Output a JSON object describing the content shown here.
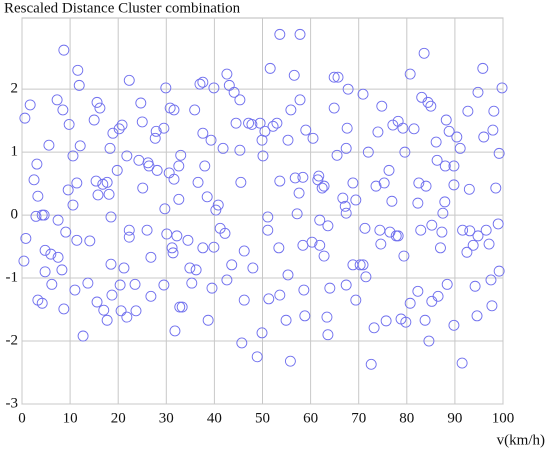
{
  "chart_data": {
    "type": "scatter",
    "title": "Rescaled Distance Cluster combination",
    "x_label": "v(km/h)",
    "color": "#7070ee",
    "grid": true,
    "xlim": [
      0,
      100
    ],
    "xticks": [
      0,
      10,
      20,
      30,
      40,
      50,
      60,
      70,
      80,
      90,
      100
    ],
    "ylim": [
      -3,
      3.13
    ],
    "yticks": [
      -3,
      -2,
      -1,
      0,
      1,
      2
    ],
    "x": [
      0.6,
      1.7,
      3.1,
      2.5,
      0.8,
      0.4,
      3.3,
      4.2,
      4.6,
      2.9,
      5.6,
      4.8,
      6.0,
      4.8,
      6.2,
      3.3,
      4.2,
      7.5,
      8.3,
      8.5,
      7.3,
      9.8,
      8.7,
      7.5,
      9.6,
      8.7,
      9.1,
      11.6,
      11.9,
      10.6,
      12.1,
      11.4,
      10.6,
      11.4,
      11,
      13.7,
      12.7,
      14.1,
      15,
      15.4,
      15.6,
      15.8,
      16.8,
      16.2,
      15.6,
      17,
      17.7,
      17.7,
      18.1,
      18.3,
      18.5,
      18.7,
      18.9,
      18.5,
      20.2,
      20.8,
      19.8,
      20.4,
      21.2,
      20.6,
      21.8,
      21.8,
      22.3,
      22.3,
      22.3,
      23.5,
      23.7,
      24.3,
      24.7,
      25,
      25.1,
      26.2,
      26.4,
      26.8,
      26,
      26.8,
      27.7,
      27.9,
      28.1,
      29.5,
      29.7,
      30.1,
      29.5,
      29.9,
      30.8,
      31.6,
      30.6,
      31.6,
      32.6,
      33,
      32.6,
      31.2,
      31.4,
      32.2,
      31.8,
      32.8,
      33.3,
      34.5,
      34.9,
      36.2,
      35.3,
      35.9,
      36.6,
      37,
      37.6,
      37.6,
      37.6,
      38,
      38.5,
      38.7,
      39.5,
      39.3,
      39.9,
      39.9,
      40.3,
      40.8,
      41.2,
      41.8,
      42.2,
      42.6,
      42.6,
      43.1,
      43.6,
      44.1,
      44.5,
      45.3,
      45.3,
      45.5,
      45.7,
      46.2,
      46.2,
      47.1,
      47.8,
      48,
      48.9,
      49.5,
      49.9,
      50.1,
      49.9,
      50.5,
      51.1,
      51.1,
      51.3,
      51.6,
      52.2,
      53,
      53.4,
      53.6,
      53.6,
      53.6,
      54.9,
      55.3,
      55.3,
      55.9,
      55.8,
      56.6,
      56.8,
      57.2,
      57.6,
      57.8,
      57.8,
      58.4,
      58.4,
      58.6,
      58.8,
      59,
      60.5,
      60.3,
      61.5,
      61.7,
      62.4,
      61.9,
      61.9,
      62.8,
      62.8,
      63.4,
      63.6,
      64,
      63.6,
      64.9,
      65.7,
      64.9,
      65.5,
      66.7,
      67.2,
      67.4,
      67.6,
      67.8,
      67.4,
      67.4,
      68.8,
      68.8,
      69.4,
      69.4,
      70.3,
      70.9,
      70.9,
      71.3,
      71.5,
      72,
      72.6,
      73.2,
      73.6,
      74,
      74.4,
      74.6,
      74.8,
      75.3,
      75.7,
      76.3,
      76.5,
      76.9,
      77.1,
      77.8,
      78.2,
      78.2,
      78.8,
      79.2,
      79.4,
      79.6,
      79.8,
      80.7,
      81.5,
      80.7,
      82.3,
      82.3,
      82.5,
      82.9,
      83.1,
      83.6,
      84,
      83.8,
      84.4,
      84.6,
      85,
      85.2,
      85.2,
      86.1,
      86.3,
      86.5,
      87,
      87.3,
      87.5,
      87.9,
      88.2,
      88,
      88.4,
      88.8,
      89.8,
      89.8,
      89.8,
      90.4,
      91.1,
      91.6,
      91.5,
      92.5,
      93,
      92.7,
      93.1,
      93.8,
      94.2,
      94.6,
      94.8,
      94.8,
      95.8,
      96,
      96.5,
      97.1,
      97.5,
      97.7,
      97.9,
      98.1,
      98.5,
      99.2,
      99.8,
      99,
      99.2
    ],
    "values": [
      1.54,
      1.75,
      0.81,
      0.56,
      -0.37,
      -0.73,
      0.3,
      0,
      0,
      -0.02,
      1.11,
      -0.56,
      -0.62,
      -0.9,
      -1.1,
      -1.35,
      -1.4,
      -0.67,
      -0.87,
      1.67,
      1.83,
      1.44,
      2.62,
      -0.08,
      0.4,
      -1.49,
      -0.27,
      2.3,
      2.06,
      0.94,
      1.1,
      0.51,
      0.16,
      -0.4,
      -1.19,
      -1.08,
      -1.92,
      -0.41,
      1.51,
      0.54,
      1.79,
      0.32,
      0.49,
      1.7,
      -1.38,
      -1.51,
      -1.67,
      0.52,
      0.33,
      1.06,
      -0.78,
      -1.27,
      1.3,
      -0.03,
      1.37,
      1.43,
      0.71,
      -1.11,
      -0.84,
      -1.52,
      -1.62,
      0.94,
      2.14,
      -0.24,
      -0.35,
      -1.1,
      -1.52,
      0.87,
      1.78,
      1.48,
      0.43,
      0.83,
      0.78,
      -0.67,
      -0.24,
      -1.29,
      1.22,
      1.33,
      0.71,
      1.38,
      0.1,
      -0.3,
      -1.11,
      2.02,
      1.7,
      1.67,
      0.67,
      0.57,
      0.78,
      0.95,
      0.25,
      -0.52,
      -0.6,
      -0.33,
      -1.84,
      -1.46,
      -1.46,
      -0.4,
      -0.84,
      -0.87,
      -1.08,
      1.67,
      0.52,
      2.08,
      2.11,
      1.3,
      -0.52,
      0.78,
      0.29,
      -1.67,
      -1.16,
      1.19,
      2.02,
      -0.51,
      0.08,
      0.16,
      -0.21,
      1.06,
      -0.29,
      -1.03,
      2.24,
      2.06,
      -0.79,
      1.95,
      1.46,
      1.83,
      1.03,
      0.52,
      -2.03,
      -0.57,
      -1.35,
      1.46,
      1.44,
      -0.84,
      -2.25,
      1.46,
      1.19,
      0.94,
      -1.87,
      1.33,
      -0.24,
      -0.03,
      -1.33,
      2.33,
      1.41,
      1.46,
      -0.52,
      2.87,
      0.54,
      -1.27,
      -1.67,
      1.19,
      -0.95,
      1.67,
      -2.32,
      2.22,
      0.59,
      0.02,
      0.35,
      2.87,
      1.83,
      0.6,
      -0.48,
      -1.19,
      -1.6,
      1.35,
      1.22,
      -0.43,
      0.56,
      0.62,
      0.43,
      -0.48,
      -0.08,
      0.46,
      -0.65,
      -1.62,
      -0.17,
      -1.16,
      -1.9,
      2.19,
      2.19,
      1.7,
      0.95,
      0.27,
      0.14,
      1.06,
      1.38,
      2.0,
      -1.11,
      0.03,
      -0.79,
      0.51,
      0.24,
      -1.35,
      -0.79,
      1.92,
      -0.79,
      -0.21,
      -0.98,
      1.0,
      -2.37,
      -1.79,
      0.46,
      1.32,
      -0.24,
      -0.46,
      1.73,
      0.51,
      -1.68,
      0.71,
      -0.27,
      0.22,
      1.43,
      -0.33,
      1.49,
      -0.33,
      -1.65,
      1.38,
      -0.65,
      1.0,
      -1.7,
      2.24,
      1.37,
      -1.4,
      0.19,
      -1.21,
      0.51,
      -0.24,
      1.87,
      2.57,
      0.46,
      -1.67,
      1.79,
      -2.0,
      1.73,
      -0.16,
      -1.37,
      1.16,
      0.87,
      -1.29,
      -0.52,
      -0.27,
      0.03,
      0.21,
      1.51,
      0.78,
      -1.1,
      1.33,
      0.78,
      -1.75,
      0.48,
      1.24,
      1.06,
      -0.24,
      -2.35,
      -0.59,
      0.41,
      1.65,
      -0.25,
      -0.48,
      -1.13,
      -1.6,
      -0.33,
      1.95,
      2.33,
      1.24,
      -0.24,
      -0.46,
      -1.03,
      -1.44,
      1.35,
      1.65,
      0.43,
      -0.89,
      2.02,
      -0.14,
      0.98
    ]
  }
}
